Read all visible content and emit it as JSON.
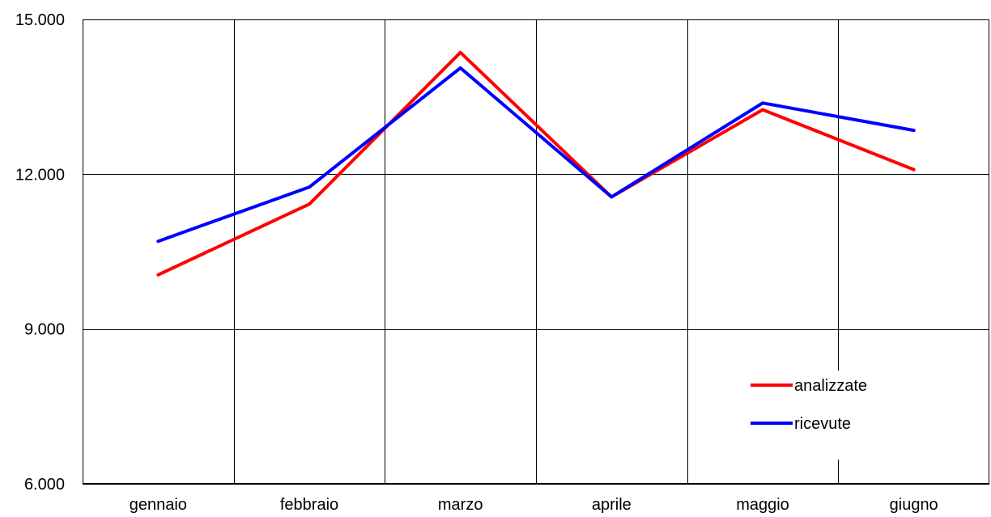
{
  "chart_data": {
    "type": "line",
    "categories": [
      "gennaio",
      "febbraio",
      "marzo",
      "aprile",
      "maggio",
      "giugno"
    ],
    "series": [
      {
        "name": "analizzate",
        "color": "#ff0000",
        "values": [
          10050,
          11420,
          14360,
          11560,
          13250,
          12090
        ]
      },
      {
        "name": "ricevute",
        "color": "#0000ff",
        "values": [
          10700,
          11750,
          14060,
          11560,
          13380,
          12850
        ]
      }
    ],
    "ylim": [
      6000,
      15000
    ],
    "yticks": [
      6000,
      9000,
      12000,
      15000
    ],
    "ytick_labels": [
      "6.000",
      "9.000",
      "12.000",
      "15.000"
    ],
    "grid": true,
    "legend": "bottom-right",
    "title": "",
    "xlabel": "",
    "ylabel": ""
  }
}
